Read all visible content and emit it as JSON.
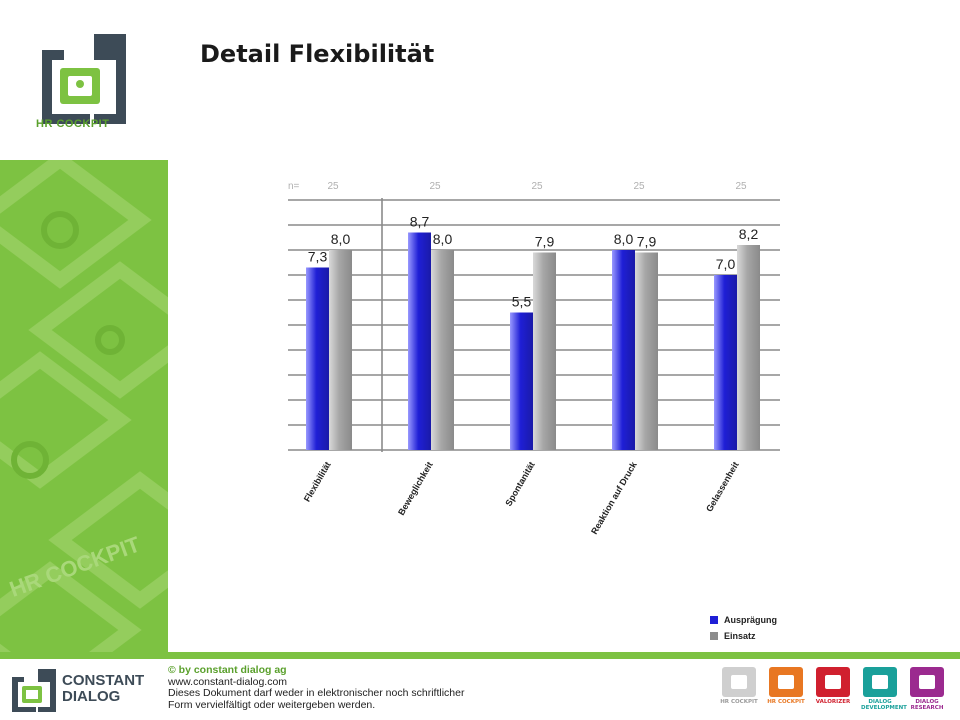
{
  "header": {
    "title": "Detail Flexibilität",
    "logo_text": "HR COCKPIT"
  },
  "colors": {
    "accent_green": "#7dc242",
    "dark_green": "#5aa02c",
    "series_blue": "#1f1fd6",
    "series_gray": "#a6a6a6",
    "logo_slate": "#3d4b57"
  },
  "chart_data": {
    "type": "bar",
    "title": "",
    "xlabel": "",
    "ylabel": "",
    "ylim": [
      0,
      10
    ],
    "grid": true,
    "n_label": "n=",
    "n_values": [
      "25",
      "25",
      "25",
      "25",
      "25"
    ],
    "categories": [
      "Flexibilität",
      "Beweglichkeit",
      "Spontanität",
      "Reaktion auf Druck",
      "Gelassenheit"
    ],
    "series": [
      {
        "name": "Ausprägung",
        "color": "#1f1fd6",
        "values": [
          7.3,
          8.7,
          5.5,
          8.0,
          7.0
        ],
        "labels": [
          "7,3",
          "8,7",
          "5,5",
          "8,0",
          "7,0"
        ]
      },
      {
        "name": "Einsatz",
        "color": "#a6a6a6",
        "values": [
          8.0,
          8.0,
          7.9,
          7.9,
          8.2
        ],
        "labels": [
          "8,0",
          "8,0",
          "7,9",
          "7,9",
          "8,2"
        ]
      }
    ],
    "legend_position": "bottom-right"
  },
  "footer": {
    "company_line1": "CONSTANT",
    "company_line2": "DIALOG",
    "copyright": "© by constant dialog ag",
    "website": "www.constant-dialog.com",
    "notice_line1": "Dieses Dokument darf weder in elektronischer noch schriftlicher",
    "notice_line2": "Form vervielfältigt oder weitergeben werden.",
    "products": [
      {
        "label": "HR COCKPIT",
        "color": "#cfcfcf",
        "text_color": "#9a9a9a",
        "icon": "hr-cockpit-icon"
      },
      {
        "label": "HR COCKPIT",
        "color": "#e87722",
        "text_color": "#e87722",
        "icon": "hr-cockpit-icon"
      },
      {
        "label": "VALORIZER",
        "color": "#d0202e",
        "text_color": "#d0202e",
        "icon": "valorizer-icon"
      },
      {
        "label": "DIALOG DEVELOPMENT",
        "color": "#1aa09a",
        "text_color": "#1aa09a",
        "icon": "dialog-development-icon"
      },
      {
        "label": "DIALOG RESEARCH",
        "color": "#9b2a8f",
        "text_color": "#9b2a8f",
        "icon": "dialog-research-icon"
      }
    ]
  }
}
